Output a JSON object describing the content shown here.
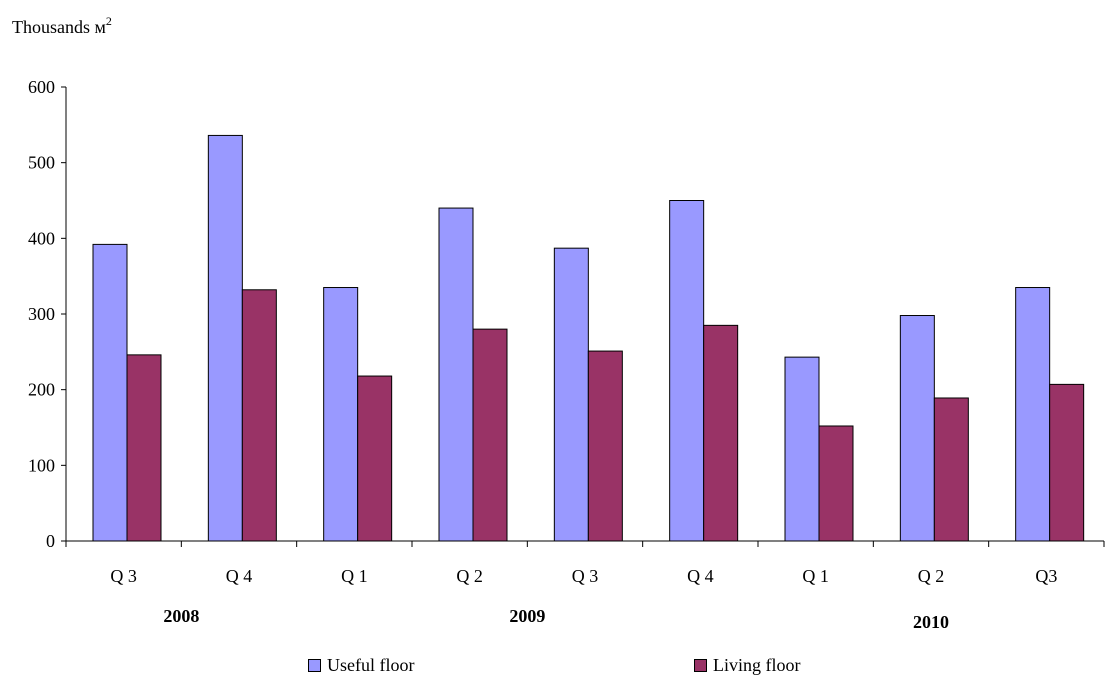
{
  "chart_data": {
    "type": "bar",
    "ylabel": "Thousands м",
    "ylabel_sup": "2",
    "ylim": [
      0,
      600
    ],
    "yticks": [
      0,
      100,
      200,
      300,
      400,
      500,
      600
    ],
    "grid": false,
    "legend_position": "bottom",
    "categories": [
      "Q 3",
      "Q 4",
      "Q 1",
      "Q 2",
      "Q 3",
      "Q 4",
      "Q 1",
      "Q 2",
      "Q3"
    ],
    "year_groups": [
      {
        "label": "2008",
        "span": [
          0,
          1
        ]
      },
      {
        "label": "2009",
        "span": [
          2,
          5
        ]
      },
      {
        "label": "2010",
        "span": [
          6,
          8
        ]
      }
    ],
    "series": [
      {
        "name": "Useful floor",
        "color": "#9999ff",
        "values": [
          392,
          536,
          335,
          440,
          387,
          450,
          243,
          298,
          335
        ]
      },
      {
        "name": "Living floor",
        "color": "#993366",
        "values": [
          246,
          332,
          218,
          280,
          251,
          285,
          152,
          189,
          207
        ]
      }
    ]
  }
}
